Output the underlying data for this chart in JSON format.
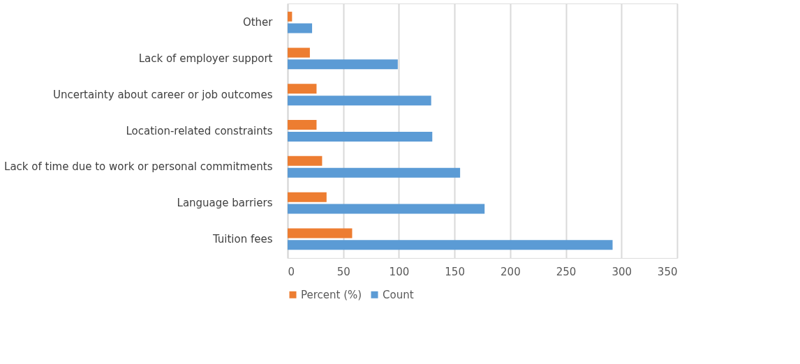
{
  "chart_data": {
    "type": "bar",
    "orientation": "horizontal",
    "categories": [
      "Other",
      "Lack of employer support",
      "Uncertainty about career or job outcomes",
      "Location-related constraints",
      "Lack of time due to work or personal commitments",
      "Language barriers",
      "Tuition fees"
    ],
    "series": [
      {
        "name": "Percent (%)",
        "color": "#ed7d31",
        "values": [
          4,
          20,
          26,
          26,
          31,
          35,
          58
        ]
      },
      {
        "name": "Count",
        "color": "#5b9bd5",
        "values": [
          22,
          99,
          129,
          130,
          155,
          177,
          292
        ]
      }
    ],
    "xlim": [
      0,
      350
    ],
    "xticks": [
      0,
      50,
      100,
      150,
      200,
      250,
      300,
      350
    ],
    "grid": "x",
    "legend": "bottom"
  }
}
